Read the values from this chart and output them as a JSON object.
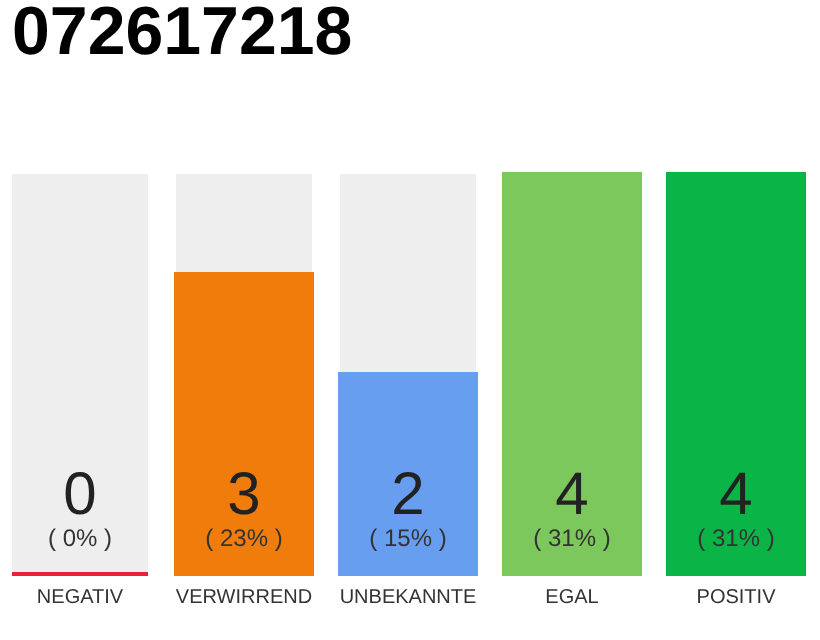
{
  "chart_data": {
    "type": "bar",
    "title": "072617218",
    "categories": [
      "NEGATIV",
      "VERWIRREND",
      "UNBEKANNTE",
      "EGAL",
      "POSITIV"
    ],
    "values": [
      0,
      3,
      2,
      4,
      4
    ],
    "colors": [
      "#e8213a",
      "#f07c0c",
      "#679ef0",
      "#7dc85c",
      "#0bb446"
    ],
    "data_labels": true,
    "annotations": [
      "( 0% )",
      "( 23% )",
      "( 15% )",
      "( 31% )",
      "( 31% )"
    ],
    "tick_labels": "x"
  }
}
